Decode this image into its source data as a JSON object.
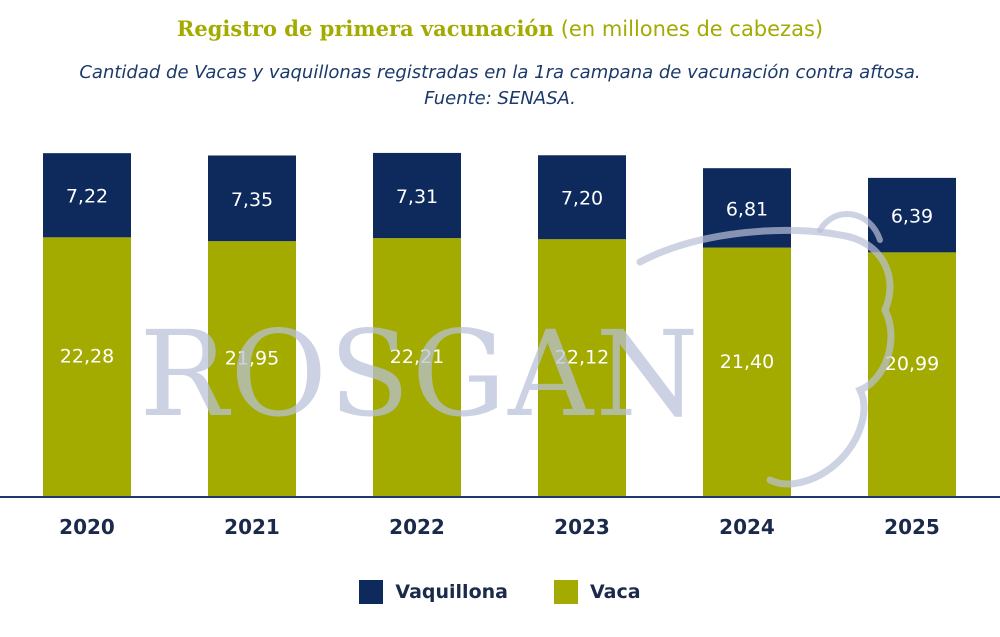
{
  "header": {
    "title": "Registro de primera vacunación",
    "title_suffix": "(en millones de cabezas)",
    "subtitle_line1": "Cantidad de Vacas y vaquillonas registradas en la 1ra campana de vacunación contra aftosa.",
    "subtitle_line2": "Fuente: SENASA."
  },
  "watermark": {
    "text": "ROSGAN"
  },
  "colors": {
    "vaquillona": "#0e2a5c",
    "vaca": "#a3ab00",
    "title": "#a3ab00",
    "subtitle": "#1b3a6b",
    "axis": "#1b3a6b",
    "watermark": "#b9c0d8"
  },
  "chart_data": {
    "type": "bar",
    "stacked": true,
    "categories": [
      "2020",
      "2021",
      "2022",
      "2023",
      "2024",
      "2025"
    ],
    "series": [
      {
        "name": "Vaca",
        "values": [
          22.28,
          21.95,
          22.21,
          22.12,
          21.4,
          20.99
        ],
        "labels": [
          "22,28",
          "21,95",
          "22,21",
          "22,12",
          "21,40",
          "20,99"
        ]
      },
      {
        "name": "Vaquillona",
        "values": [
          7.22,
          7.35,
          7.31,
          7.2,
          6.81,
          6.39
        ],
        "labels": [
          "7,22",
          "7,35",
          "7,31",
          "7,20",
          "6,81",
          "6,39"
        ]
      }
    ],
    "ylim": [
      0,
      29.6
    ],
    "grid": false,
    "legend": "bottom"
  },
  "legend": {
    "items": [
      {
        "label": "Vaquillona",
        "color": "#0e2a5c"
      },
      {
        "label": "Vaca",
        "color": "#a3ab00"
      }
    ]
  }
}
